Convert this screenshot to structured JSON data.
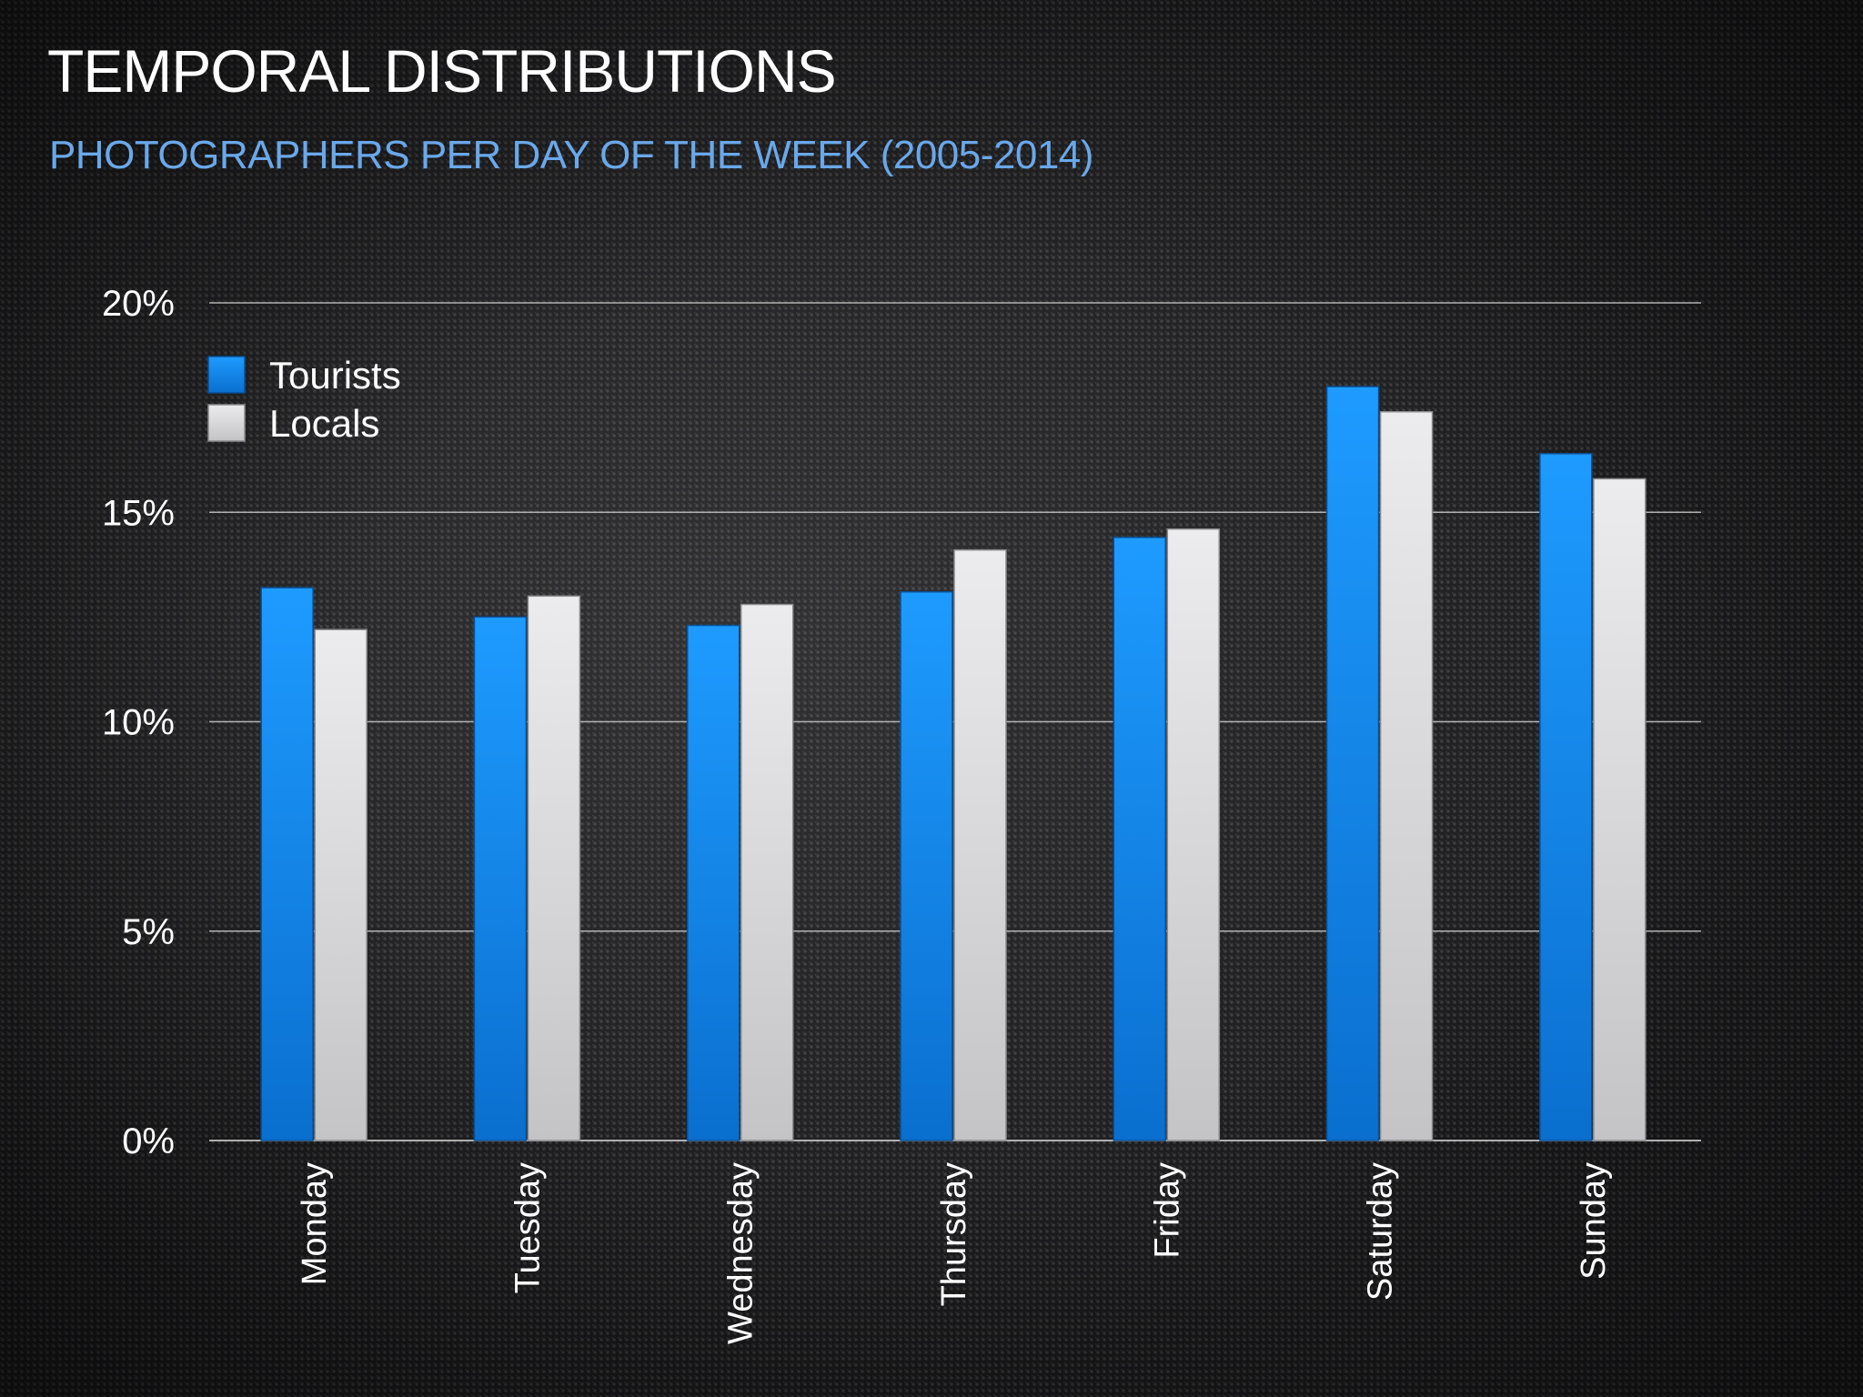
{
  "slide": {
    "title": "TEMPORAL DISTRIBUTIONS",
    "subtitle": "PHOTOGRAPHERS PER DAY OF THE WEEK (2005-2014)"
  },
  "colors": {
    "tourists": "#1a8cf0",
    "locals": "#dcdcdc",
    "subtitle": "#6aa8ea",
    "grid": "#b0b0b0"
  },
  "chart_data": {
    "type": "bar",
    "categories": [
      "Monday",
      "Tuesday",
      "Wednesday",
      "Thursday",
      "Friday",
      "Saturday",
      "Sunday"
    ],
    "series": [
      {
        "name": "Tourists",
        "values": [
          13.2,
          12.5,
          12.3,
          13.1,
          14.4,
          18.0,
          16.4
        ]
      },
      {
        "name": "Locals",
        "values": [
          12.2,
          13.0,
          12.8,
          14.1,
          14.6,
          17.4,
          15.8
        ]
      }
    ],
    "y_ticks": [
      {
        "value": 0,
        "label": "0%"
      },
      {
        "value": 5,
        "label": "5%"
      },
      {
        "value": 10,
        "label": "10%"
      },
      {
        "value": 15,
        "label": "15%"
      },
      {
        "value": 20,
        "label": "20%"
      }
    ],
    "ylim": [
      0,
      20
    ],
    "grid": true,
    "legend": "top-left",
    "title": "",
    "xlabel": "",
    "ylabel": ""
  }
}
